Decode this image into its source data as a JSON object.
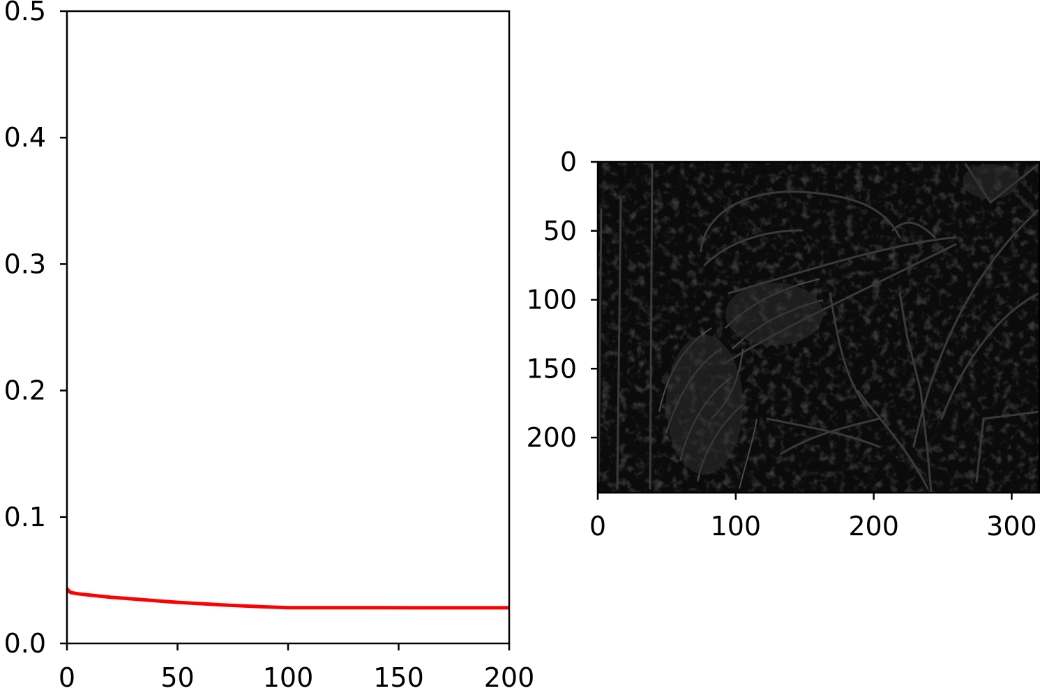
{
  "chart_data": [
    {
      "type": "line",
      "title": "",
      "xlabel": "",
      "ylabel": "",
      "xlim": [
        0,
        200
      ],
      "ylim": [
        0,
        0.5
      ],
      "x_ticks": [
        "0",
        "50",
        "100",
        "150",
        "200"
      ],
      "y_ticks": [
        "0.0",
        "0.1",
        "0.2",
        "0.3",
        "0.4",
        "0.5"
      ],
      "grid": false,
      "series": [
        {
          "color": "#ff0000",
          "x": [
            0,
            1,
            2,
            5,
            10,
            20,
            30,
            40,
            50,
            60,
            70,
            80,
            90,
            100,
            120,
            140,
            160,
            180,
            200
          ],
          "values": [
            0.0435,
            0.041,
            0.0402,
            0.0393,
            0.0383,
            0.0365,
            0.0352,
            0.0338,
            0.0325,
            0.0315,
            0.0305,
            0.0297,
            0.0289,
            0.0283,
            0.0283,
            0.0283,
            0.0282,
            0.0282,
            0.0282
          ]
        }
      ]
    },
    {
      "type": "image",
      "title": "",
      "xlabel": "",
      "ylabel": "",
      "xlim": [
        0,
        320
      ],
      "ylim": [
        240,
        0
      ],
      "x_ticks": [
        "0",
        "100",
        "200",
        "300"
      ],
      "y_ticks": [
        "0",
        "50",
        "100",
        "150",
        "200"
      ],
      "grid": false,
      "colormap": "gray"
    }
  ]
}
